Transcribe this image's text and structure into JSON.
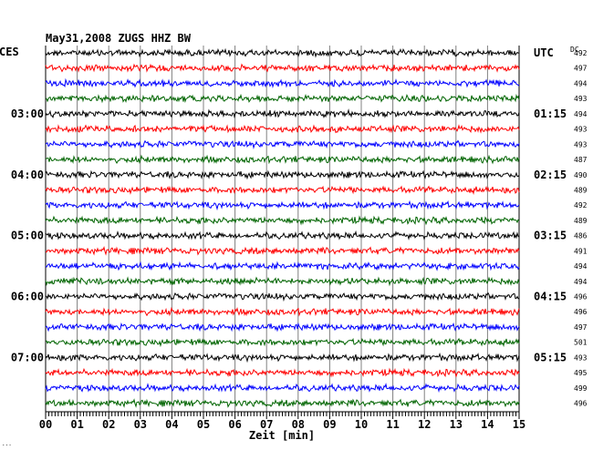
{
  "header": {
    "title": "May31,2008   ZUGS HHZ BW",
    "left_zone": "CES",
    "right_zone": "UTC",
    "dc_label": "DC",
    "corner_mark": "..."
  },
  "chart_data": {
    "type": "line",
    "title": "May31,2008   ZUGS HHZ BW",
    "xlabel": "Zeit [min]",
    "xlim": [
      0,
      15
    ],
    "x_ticks": [
      "00",
      "01",
      "02",
      "03",
      "04",
      "05",
      "06",
      "07",
      "08",
      "09",
      "10",
      "11",
      "12",
      "13",
      "14",
      "15"
    ],
    "left_hour_labels": [
      {
        "row": 4,
        "label": "03:00"
      },
      {
        "row": 8,
        "label": "04:00"
      },
      {
        "row": 12,
        "label": "05:00"
      },
      {
        "row": 16,
        "label": "06:00"
      },
      {
        "row": 20,
        "label": "07:00"
      }
    ],
    "right_hour_labels": [
      {
        "row": 0,
        "label": "UTC"
      },
      {
        "row": 4,
        "label": "01:15"
      },
      {
        "row": 8,
        "label": "02:15"
      },
      {
        "row": 12,
        "label": "03:15"
      },
      {
        "row": 16,
        "label": "04:15"
      },
      {
        "row": 20,
        "label": "05:15"
      }
    ],
    "row_colors": [
      "#000000",
      "#ff0000",
      "#0000ff",
      "#006400"
    ],
    "dc_offsets": [
      492,
      497,
      494,
      493,
      494,
      493,
      493,
      487,
      490,
      489,
      492,
      489,
      486,
      491,
      494,
      494,
      496,
      496,
      497,
      501,
      493,
      495,
      499,
      496
    ]
  }
}
